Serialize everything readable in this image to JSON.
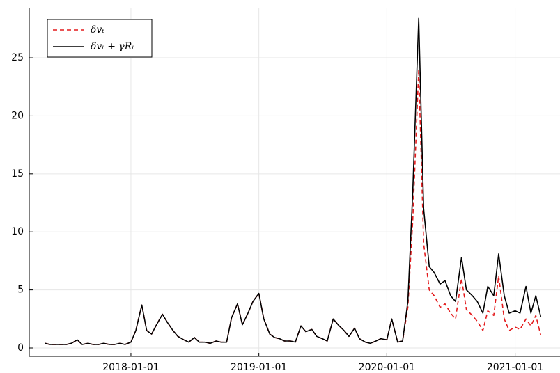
{
  "chart_data": {
    "type": "line",
    "x": [
      "2017-05-01",
      "2017-05-15",
      "2017-06-01",
      "2017-06-15",
      "2017-07-01",
      "2017-07-15",
      "2017-08-01",
      "2017-08-15",
      "2017-09-01",
      "2017-09-15",
      "2017-10-01",
      "2017-10-15",
      "2017-11-01",
      "2017-11-15",
      "2017-12-01",
      "2017-12-15",
      "2018-01-01",
      "2018-01-15",
      "2018-02-01",
      "2018-02-15",
      "2018-03-01",
      "2018-03-15",
      "2018-04-01",
      "2018-04-15",
      "2018-05-01",
      "2018-05-15",
      "2018-06-01",
      "2018-06-15",
      "2018-07-01",
      "2018-07-15",
      "2018-08-01",
      "2018-08-15",
      "2018-09-01",
      "2018-09-15",
      "2018-10-01",
      "2018-10-15",
      "2018-11-01",
      "2018-11-15",
      "2018-12-01",
      "2018-12-15",
      "2019-01-01",
      "2019-01-15",
      "2019-02-01",
      "2019-02-15",
      "2019-03-01",
      "2019-03-15",
      "2019-04-01",
      "2019-04-15",
      "2019-05-01",
      "2019-05-15",
      "2019-06-01",
      "2019-06-15",
      "2019-07-01",
      "2019-07-15",
      "2019-08-01",
      "2019-08-15",
      "2019-09-01",
      "2019-09-15",
      "2019-10-01",
      "2019-10-15",
      "2019-11-01",
      "2019-11-15",
      "2019-12-01",
      "2019-12-15",
      "2020-01-01",
      "2020-01-15",
      "2020-02-01",
      "2020-02-15",
      "2020-03-01",
      "2020-03-15",
      "2020-04-01",
      "2020-04-15",
      "2020-05-01",
      "2020-05-15",
      "2020-06-01",
      "2020-06-15",
      "2020-07-01",
      "2020-07-15",
      "2020-08-01",
      "2020-08-15",
      "2020-09-01",
      "2020-09-15",
      "2020-10-01",
      "2020-10-15",
      "2020-11-01",
      "2020-11-15",
      "2020-12-01",
      "2020-12-15",
      "2021-01-01",
      "2021-01-15",
      "2021-02-01",
      "2021-02-15",
      "2021-03-01",
      "2021-03-15"
    ],
    "series": [
      {
        "name": "δvₜ",
        "color": "#e31a1c",
        "dash": true,
        "values": [
          0.4,
          0.3,
          0.3,
          0.3,
          0.3,
          0.4,
          0.7,
          0.3,
          0.4,
          0.3,
          0.3,
          0.4,
          0.3,
          0.3,
          0.4,
          0.3,
          0.5,
          1.5,
          3.7,
          1.5,
          1.2,
          2.0,
          2.9,
          2.2,
          1.5,
          1.0,
          0.7,
          0.5,
          0.9,
          0.5,
          0.5,
          0.4,
          0.6,
          0.5,
          0.5,
          2.6,
          3.8,
          2.0,
          3.0,
          4.0,
          4.7,
          2.5,
          1.2,
          0.9,
          0.8,
          0.6,
          0.6,
          0.5,
          1.9,
          1.4,
          1.6,
          1.0,
          0.8,
          0.6,
          2.5,
          2.0,
          1.5,
          1.0,
          1.7,
          0.8,
          0.5,
          0.4,
          0.6,
          0.8,
          0.7,
          2.5,
          0.5,
          0.6,
          3.5,
          11,
          24,
          9,
          5,
          4.5,
          3.5,
          3.8,
          3,
          2.5,
          6,
          3.3,
          2.8,
          2.3,
          1.5,
          3.2,
          2.8,
          6.2,
          2.5,
          1.5,
          1.8,
          1.6,
          2.5,
          1.9,
          2.8,
          1.1
        ]
      },
      {
        "name": "δvₜ + γRₜ",
        "color": "#000000",
        "dash": false,
        "values": [
          0.4,
          0.3,
          0.3,
          0.3,
          0.3,
          0.4,
          0.7,
          0.3,
          0.4,
          0.3,
          0.3,
          0.4,
          0.3,
          0.3,
          0.4,
          0.3,
          0.5,
          1.5,
          3.7,
          1.5,
          1.2,
          2.0,
          2.9,
          2.2,
          1.5,
          1.0,
          0.7,
          0.5,
          0.9,
          0.5,
          0.5,
          0.4,
          0.6,
          0.5,
          0.5,
          2.6,
          3.8,
          2.0,
          3.0,
          4.0,
          4.7,
          2.5,
          1.2,
          0.9,
          0.8,
          0.6,
          0.6,
          0.5,
          1.9,
          1.4,
          1.6,
          1.0,
          0.8,
          0.6,
          2.5,
          2.0,
          1.5,
          1.0,
          1.7,
          0.8,
          0.5,
          0.4,
          0.6,
          0.8,
          0.7,
          2.5,
          0.5,
          0.6,
          4.0,
          13.5,
          28.4,
          12,
          7,
          6.5,
          5.5,
          5.8,
          4.5,
          4,
          7.8,
          5,
          4.5,
          4,
          3,
          5.3,
          4.5,
          8.1,
          4.5,
          3,
          3.2,
          3,
          5.3,
          3,
          4.5,
          2.7
        ]
      }
    ],
    "xlim": [
      "2017-03-17",
      "2021-05-09"
    ],
    "xticks": [
      "2018-01-01",
      "2019-01-01",
      "2020-01-01",
      "2021-01-01"
    ],
    "ylim": [
      -0.72,
      29.26
    ],
    "yticks": [
      0,
      5,
      10,
      15,
      20,
      25
    ],
    "grid": true,
    "legend": "top-left"
  }
}
